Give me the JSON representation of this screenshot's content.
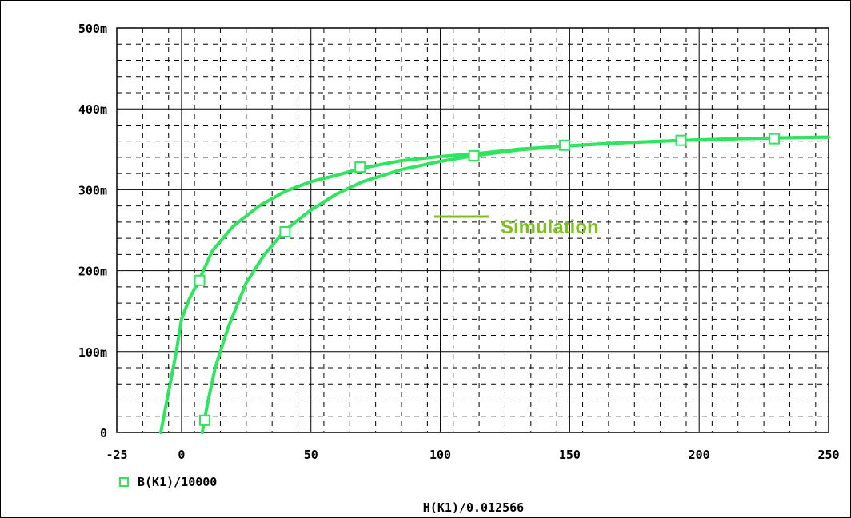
{
  "chart_data": {
    "type": "line",
    "xlabel": "H(K1)/0.012566",
    "ylabel": "",
    "xlim": [
      -25,
      250
    ],
    "ylim": [
      0,
      500
    ],
    "x_ticks": [
      -25,
      0,
      50,
      100,
      150,
      200,
      250
    ],
    "x_tick_labels": [
      "-25",
      "0",
      "50",
      "100",
      "150",
      "200",
      "250"
    ],
    "y_ticks": [
      0,
      100,
      200,
      300,
      400,
      500
    ],
    "y_tick_labels": [
      "0",
      "100m",
      "200m",
      "300m",
      "400m",
      "500m"
    ],
    "y_unit": "m (milli)",
    "grid": true,
    "legend_position": "bottom-left",
    "line_color": "#2EE55E",
    "annotation": {
      "text": "Simulation",
      "color": "#7DC01F"
    },
    "series": [
      {
        "name": "B(K1)/10000",
        "marker": "square",
        "branches": [
          {
            "x": [
              -8,
              -5,
              -2,
              0,
              3,
              7,
              12,
              20,
              30,
              40,
              50,
              60,
              70,
              85,
              100,
              115,
              130,
              148,
              170,
              193,
              215,
              230,
              250
            ],
            "y": [
              0,
              50,
              100,
              140,
              165,
              190,
              225,
              255,
              280,
              298,
              310,
              318,
              327,
              336,
              341,
              345,
              350,
              354,
              358,
              361,
              363,
              364,
              365
            ]
          },
          {
            "x": [
              8,
              10,
              13,
              18,
              25,
              32,
              40,
              50,
              60,
              70,
              85,
              100,
              113,
              130,
              148,
              170,
              193,
              215,
              230,
              250
            ],
            "y": [
              0,
              35,
              80,
              130,
              185,
              220,
              250,
              275,
              295,
              310,
              325,
              335,
              342,
              349,
              354,
              358,
              361,
              363,
              364,
              365
            ]
          }
        ],
        "marker_points": [
          [
            7,
            188
          ],
          [
            9,
            15
          ],
          [
            40,
            248
          ],
          [
            69,
            328
          ],
          [
            113,
            342
          ],
          [
            148,
            355
          ],
          [
            193,
            361
          ],
          [
            229,
            363
          ]
        ]
      }
    ]
  }
}
